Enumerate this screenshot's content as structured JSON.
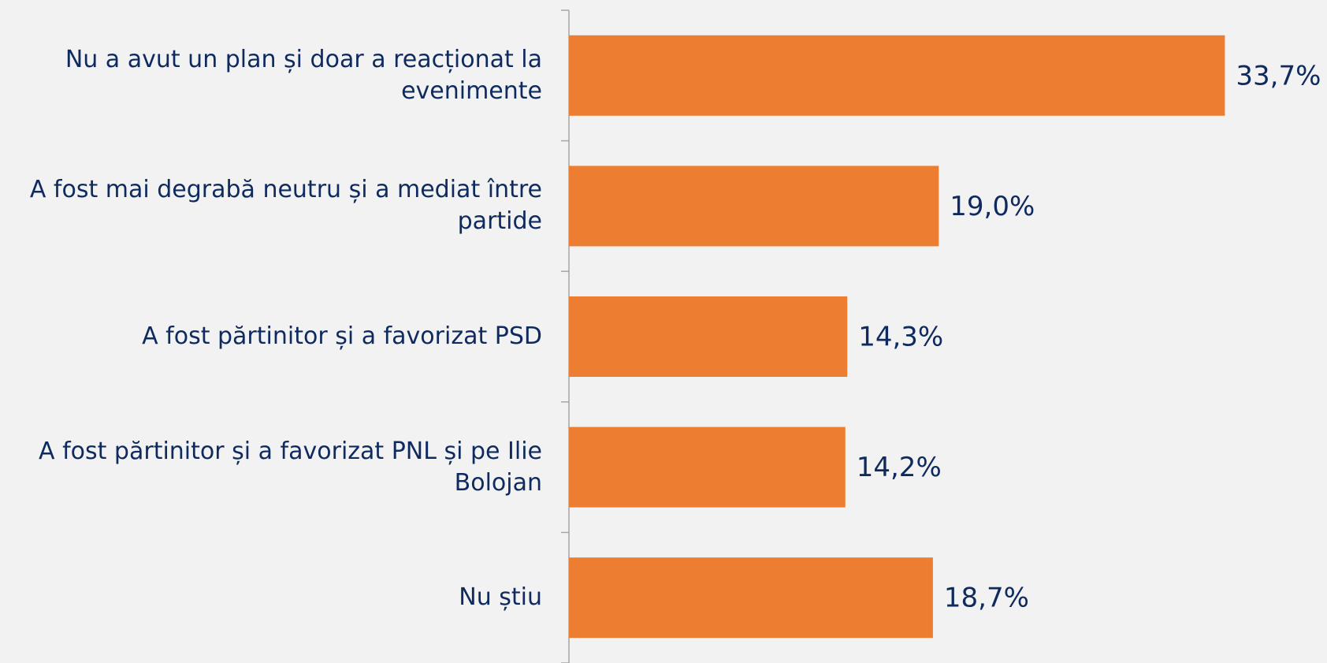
{
  "chart_data": {
    "type": "bar",
    "orientation": "horizontal",
    "categories": [
      "Nu a avut un plan și doar a reacționat la evenimente",
      "A fost mai degrabă neutru și a mediat între partide",
      "A fost părtinitor și a favorizat PSD",
      "A fost părtinitor și a favorizat PNL și pe Ilie Bolojan",
      "Nu știu"
    ],
    "values": [
      33.7,
      19.0,
      14.3,
      14.2,
      18.7
    ],
    "value_labels": [
      "33,7%",
      "19,0%",
      "14,3%",
      "14,2%",
      "18,7%"
    ],
    "color": "#ed7d31"
  }
}
